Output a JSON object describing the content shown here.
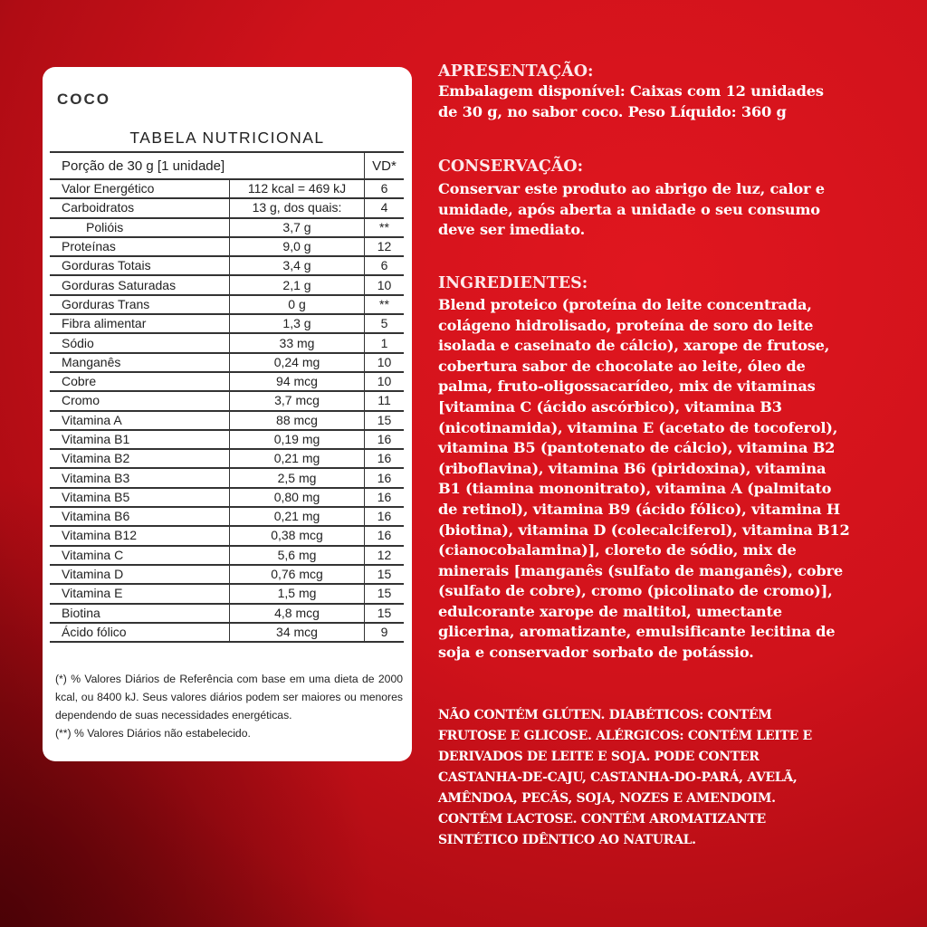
{
  "colors": {
    "background": "#d0121b",
    "card": "#ffffff",
    "text_light": "#ffffff"
  },
  "card": {
    "flavor": "COCO",
    "title": "TABELA NUTRICIONAL",
    "header": {
      "portion": "Porção de 30 g  [1 unidade]",
      "vd": "VD*"
    },
    "rows": [
      {
        "name": "Valor Energético",
        "amount": "112 kcal = 469 kJ",
        "vd": "6"
      },
      {
        "name": "Carboidratos",
        "amount": "13 g, dos quais:",
        "vd": "4"
      },
      {
        "name": "Polióis",
        "amount": "3,7 g",
        "vd": "**"
      },
      {
        "name": "Proteínas",
        "amount": "9,0 g",
        "vd": "12"
      },
      {
        "name": "Gorduras Totais",
        "amount": "3,4 g",
        "vd": "6"
      },
      {
        "name": "Gorduras Saturadas",
        "amount": "2,1 g",
        "vd": "10"
      },
      {
        "name": "Gorduras Trans",
        "amount": "0 g",
        "vd": "**"
      },
      {
        "name": "Fibra alimentar",
        "amount": "1,3 g",
        "vd": "5"
      },
      {
        "name": "Sódio",
        "amount": "33 mg",
        "vd": "1"
      },
      {
        "name": "Manganês",
        "amount": "0,24 mg",
        "vd": "10"
      },
      {
        "name": "Cobre",
        "amount": "94 mcg",
        "vd": "10"
      },
      {
        "name": "Cromo",
        "amount": "3,7 mcg",
        "vd": "11"
      },
      {
        "name": "Vitamina A",
        "amount": "88 mcg",
        "vd": "15"
      },
      {
        "name": "Vitamina B1",
        "amount": "0,19 mg",
        "vd": "16"
      },
      {
        "name": "Vitamina B2",
        "amount": "0,21 mg",
        "vd": "16"
      },
      {
        "name": "Vitamina B3",
        "amount": "2,5 mg",
        "vd": "16"
      },
      {
        "name": "Vitamina B5",
        "amount": "0,80 mg",
        "vd": "16"
      },
      {
        "name": "Vitamina B6",
        "amount": "0,21 mg",
        "vd": "16"
      },
      {
        "name": "Vitamina B12",
        "amount": "0,38 mcg",
        "vd": "16"
      },
      {
        "name": "Vitamina C",
        "amount": "5,6 mg",
        "vd": "12"
      },
      {
        "name": "Vitamina D",
        "amount": "0,76 mcg",
        "vd": "15"
      },
      {
        "name": "Vitamina E",
        "amount": "1,5 mg",
        "vd": "15"
      },
      {
        "name": "Biotina",
        "amount": "4,8 mcg",
        "vd": "15"
      },
      {
        "name": "Ácido fólico",
        "amount": "34 mcg",
        "vd": "9"
      }
    ],
    "footnote": "(*) % Valores Diários de Referência com base em uma dieta de 2000 kcal, ou 8400 kJ. Seus valores diários podem ser maiores ou menores dependendo de suas necessidades energéticas.",
    "footnote2": "(**) % Valores Diários não estabelecido."
  },
  "info": {
    "apresentacao": {
      "title": "APRESENTAÇÃO:",
      "lines": [
        "Embalagem disponível: Caixas com 12 unidades",
        "de 30 g, no sabor coco. Peso Líquido: 360 g"
      ]
    },
    "conservacao": {
      "title": "CONSERVAÇÃO:",
      "lines": [
        "Conservar este produto ao abrigo de luz, calor e",
        "umidade, após aberta a unidade o seu consumo",
        "deve ser imediato."
      ]
    },
    "ingredientes": {
      "title": "INGREDIENTES:",
      "lines": [
        "Blend proteico (proteína do leite concentrada,",
        "colágeno hidrolisado, proteína de soro do leite",
        "isolada e caseinato de cálcio), xarope de frutose,",
        "cobertura sabor de chocolate ao leite, óleo de",
        "palma, fruto-oligossacarídeo, mix de vitaminas",
        "[vitamina C (ácido ascórbico), vitamina B3",
        "(nicotinamida), vitamina E (acetato de tocoferol),",
        "vitamina B5 (pantotenato de cálcio), vitamina B2",
        "(riboflavina), vitamina B6 (piridoxina), vitamina",
        "B1 (tiamina mononitrato), vitamina A (palmitato",
        "de retinol), vitamina B9 (ácido fólico), vitamina H",
        "(biotina), vitamina D (colecalciferol), vitamina B12",
        "(cianocobalamina)], cloreto de sódio, mix de",
        "minerais [manganês (sulfato de manganês), cobre",
        "(sulfato de cobre), cromo (picolinato de cromo)],",
        "edulcorante xarope de maltitol, umectante",
        "glicerina, aromatizante, emulsificante lecitina de",
        "soja e conservador sorbato de potássio."
      ]
    },
    "warnings": [
      "NÃO CONTÉM GLÚTEN. DIABÉTICOS: CONTÉM",
      "FRUTOSE E GLICOSE. ALÉRGICOS: CONTÉM LEITE E",
      "DERIVADOS DE LEITE E SOJA. PODE CONTER",
      "CASTANHA-DE-CAJU, CASTANHA-DO-PARÁ, AVELÃ,",
      "AMÊNDOA, PECÃS, SOJA, NOZES E AMENDOIM.",
      "CONTÉM LACTOSE. CONTÉM AROMATIZANTE",
      "SINTÉTICO IDÊNTICO AO NATURAL."
    ]
  }
}
